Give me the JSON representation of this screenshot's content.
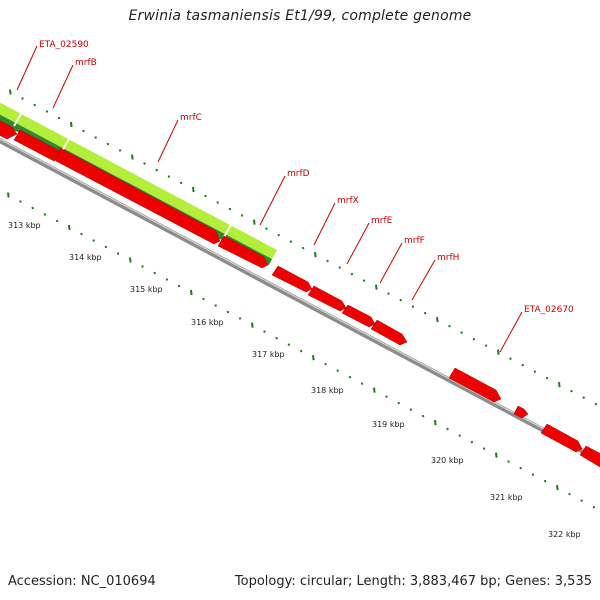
{
  "title": "Erwinia tasmaniensis Et1/99, complete genome",
  "footer": {
    "accession": "Accession: NC_010694",
    "info": "Topology: circular; Length: 3,883,467 bp; Genes: 3,535"
  },
  "colors": {
    "gene_fill": "#ee0000",
    "gene_light": "#ff6a6a",
    "gene_dark": "#b00000",
    "backbone": "#8c8c8c",
    "backbone_light": "#d0d0d0",
    "operon_light": "#b3ef3a",
    "operon_dark": "#2f8a2f",
    "tick_green": "#1e7a1e",
    "label_red": "#cc0000"
  },
  "gene_labels": [
    "ETA_02590",
    "mrfB",
    "mrfC",
    "mrfD",
    "mrfX",
    "mrfE",
    "mrfF",
    "mrfH",
    "ETA_02670"
  ],
  "scale_labels": [
    "313 kbp",
    "314 kbp",
    "315 kbp",
    "316 kbp",
    "317 kbp",
    "318 kbp",
    "319 kbp",
    "320 kbp",
    "321 kbp",
    "322 kbp"
  ]
}
